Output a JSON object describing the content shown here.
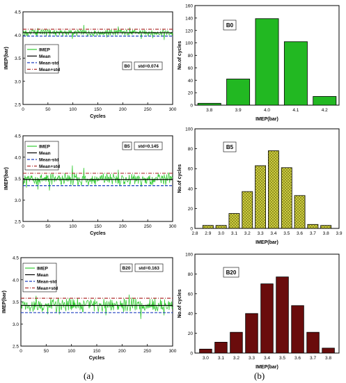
{
  "panel_labels": [
    "(a)",
    "(b)"
  ],
  "chart_data": [
    {
      "type": "line",
      "panel": "a",
      "xlabel": "Cycles",
      "ylabel": "IMEP(bar)",
      "xlim": [
        0,
        300
      ],
      "ylim": [
        2.5,
        4.5
      ],
      "xticks": [
        "0",
        "50",
        "100",
        "150",
        "200",
        "250",
        "300"
      ],
      "yticks": [
        "2.5",
        "3.0",
        "3.5",
        "4.0",
        "4.5"
      ],
      "legend": [
        "IMEP",
        "Mean",
        "Mean-std",
        "Mean+std"
      ],
      "legend_position": "middle-left",
      "tag": "B0",
      "std_label": "std=0.074",
      "mean": 4.05,
      "std": 0.074,
      "series_note": "300 cycles of IMEP fluctuating about the mean",
      "colors": {
        "imep": "#33cc33",
        "mean": "#000000",
        "mean_minus_std": "#1f3fbf",
        "mean_plus_std": "#b03030"
      }
    },
    {
      "type": "line",
      "panel": "a",
      "xlabel": "Cycles",
      "ylabel": "IMEP(bar)",
      "xlim": [
        0,
        300
      ],
      "ylim": [
        2.5,
        4.5
      ],
      "xticks": [
        "0",
        "50",
        "100",
        "150",
        "200",
        "250",
        "300"
      ],
      "yticks": [
        "2.5",
        "3.0",
        "3.5",
        "4.0",
        "4.5"
      ],
      "legend": [
        "IMEP",
        "Mean",
        "Mean-std",
        "Mean+std"
      ],
      "legend_position": "top-left",
      "tag": "B5",
      "std_label": "std=0.145",
      "mean": 3.48,
      "std": 0.145,
      "colors": {
        "imep": "#33cc33",
        "mean": "#000000",
        "mean_minus_std": "#1f3fbf",
        "mean_plus_std": "#b03030"
      }
    },
    {
      "type": "line",
      "panel": "a",
      "xlabel": "Cycles",
      "ylabel": "IMEP(bar)",
      "xlim": [
        0,
        300
      ],
      "ylim": [
        2.5,
        4.5
      ],
      "xticks": [
        "0",
        "50",
        "100",
        "150",
        "200",
        "250",
        "300"
      ],
      "yticks": [
        "2.5",
        "3.0",
        "3.5",
        "4.0",
        "4.5"
      ],
      "legend": [
        "IMEP",
        "Mean",
        "Mean-std",
        "Mean+std"
      ],
      "legend_position": "top-left",
      "tag": "B20",
      "std_label": "std=0.163",
      "mean": 3.42,
      "std": 0.163,
      "colors": {
        "imep": "#33cc33",
        "mean": "#000000",
        "mean_minus_std": "#1f3fbf",
        "mean_plus_std": "#b03030"
      }
    },
    {
      "type": "bar",
      "panel": "b",
      "tag": "B0",
      "xlabel": "IMEP(bar)",
      "ylabel": "No.of cycles",
      "categories": [
        "3.8",
        "3.9",
        "4.0",
        "4.1",
        "4.2"
      ],
      "values": [
        3,
        42,
        139,
        102,
        14
      ],
      "xlim": [
        3.75,
        4.25
      ],
      "ylim": [
        0,
        160
      ],
      "xticks": [
        "3.8",
        "3.9",
        "4.0",
        "4.1",
        "4.2"
      ],
      "yticks": [
        "0",
        "20",
        "40",
        "60",
        "80",
        "100",
        "120",
        "140",
        "160"
      ],
      "bar_color": "#22b822",
      "pattern": "solid"
    },
    {
      "type": "bar",
      "panel": "b",
      "tag": "B5",
      "xlabel": "IMEP(bar)",
      "ylabel": "No.of cycles",
      "categories": [
        "2.9",
        "3.0",
        "3.1",
        "3.2",
        "3.3",
        "3.4",
        "3.5",
        "3.6",
        "3.7",
        "3.8"
      ],
      "values": [
        3,
        3,
        15,
        37,
        63,
        78,
        61,
        33,
        4,
        3
      ],
      "xlim": [
        2.8,
        3.9
      ],
      "ylim": [
        0,
        100
      ],
      "xticks": [
        "2.8",
        "2.9",
        "3.0",
        "3.1",
        "3.2",
        "3.3",
        "3.4",
        "3.5",
        "3.6",
        "3.7",
        "3.8",
        "3.9"
      ],
      "yticks": [
        "0",
        "20",
        "40",
        "60",
        "80",
        "100"
      ],
      "bar_color": "#c8c832",
      "pattern": "crosshatch"
    },
    {
      "type": "bar",
      "panel": "b",
      "tag": "B20",
      "xlabel": "IMEP(bar)",
      "ylabel": "No.of cycles",
      "categories": [
        "3.0",
        "3.1",
        "3.2",
        "3.3",
        "3.4",
        "3.5",
        "3.6",
        "3.7",
        "3.8"
      ],
      "values": [
        4,
        11,
        21,
        40,
        70,
        77,
        48,
        21,
        5
      ],
      "xlim": [
        2.93,
        3.87
      ],
      "ylim": [
        0,
        100
      ],
      "xticks": [
        "3.0",
        "3.1",
        "3.2",
        "3.3",
        "3.4",
        "3.5",
        "3.6",
        "3.7",
        "3.8"
      ],
      "yticks": [
        "0",
        "20",
        "40",
        "60",
        "80",
        "100"
      ],
      "bar_color": "#6a0c0c",
      "pattern": "solid"
    }
  ]
}
